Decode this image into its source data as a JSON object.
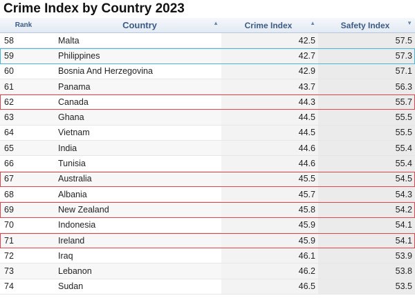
{
  "title": "Crime Index by Country 2023",
  "header": {
    "rank": "Rank",
    "country": "Country",
    "crime": "Crime Index",
    "safety": "Safety Index"
  },
  "rows": [
    {
      "rank": "58",
      "country": "Malta",
      "crime": "42.5",
      "safety": "57.5",
      "highlight": ""
    },
    {
      "rank": "59",
      "country": "Philippines",
      "crime": "42.7",
      "safety": "57.3",
      "highlight": "blue"
    },
    {
      "rank": "60",
      "country": "Bosnia And Herzegovina",
      "crime": "42.9",
      "safety": "57.1",
      "highlight": ""
    },
    {
      "rank": "61",
      "country": "Panama",
      "crime": "43.7",
      "safety": "56.3",
      "highlight": ""
    },
    {
      "rank": "62",
      "country": "Canada",
      "crime": "44.3",
      "safety": "55.7",
      "highlight": "red"
    },
    {
      "rank": "63",
      "country": "Ghana",
      "crime": "44.5",
      "safety": "55.5",
      "highlight": ""
    },
    {
      "rank": "64",
      "country": "Vietnam",
      "crime": "44.5",
      "safety": "55.5",
      "highlight": ""
    },
    {
      "rank": "65",
      "country": "India",
      "crime": "44.6",
      "safety": "55.4",
      "highlight": ""
    },
    {
      "rank": "66",
      "country": "Tunisia",
      "crime": "44.6",
      "safety": "55.4",
      "highlight": ""
    },
    {
      "rank": "67",
      "country": "Australia",
      "crime": "45.5",
      "safety": "54.5",
      "highlight": "red"
    },
    {
      "rank": "68",
      "country": "Albania",
      "crime": "45.7",
      "safety": "54.3",
      "highlight": ""
    },
    {
      "rank": "69",
      "country": "New Zealand",
      "crime": "45.8",
      "safety": "54.2",
      "highlight": "red"
    },
    {
      "rank": "70",
      "country": "Indonesia",
      "crime": "45.9",
      "safety": "54.1",
      "highlight": ""
    },
    {
      "rank": "71",
      "country": "Ireland",
      "crime": "45.9",
      "safety": "54.1",
      "highlight": "red"
    },
    {
      "rank": "72",
      "country": "Iraq",
      "crime": "46.1",
      "safety": "53.9",
      "highlight": ""
    },
    {
      "rank": "73",
      "country": "Lebanon",
      "crime": "46.2",
      "safety": "53.8",
      "highlight": ""
    },
    {
      "rank": "74",
      "country": "Sudan",
      "crime": "46.5",
      "safety": "53.5",
      "highlight": ""
    }
  ],
  "colors": {
    "header_text": "#3b5b85",
    "highlight_blue": "#4ab3d8",
    "highlight_red": "#e0454f"
  }
}
